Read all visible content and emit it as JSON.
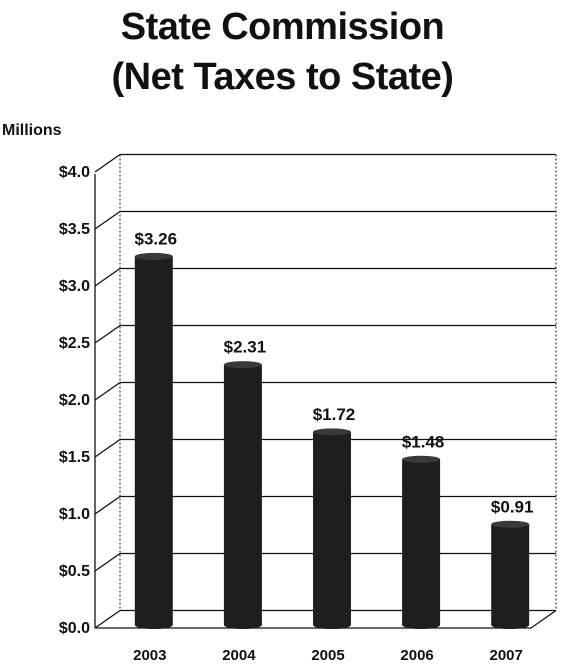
{
  "chart_data": {
    "type": "bar",
    "title_line1": "State Commission",
    "title_line2": "(Net Taxes to State)",
    "unit_label": "Millions",
    "categories": [
      "2003",
      "2004",
      "2005",
      "2006",
      "2007"
    ],
    "values": [
      3.26,
      2.31,
      1.72,
      1.48,
      0.91
    ],
    "value_labels": [
      "$3.26",
      "$2.31",
      "$1.72",
      "$1.48",
      "$0.91"
    ],
    "y_ticks": [
      0,
      0.5,
      1.0,
      1.5,
      2.0,
      2.5,
      3.0,
      3.5,
      4.0
    ],
    "y_tick_labels": [
      "$0.0",
      "$0.5",
      "$1.0",
      "$1.5",
      "$2.0",
      "$2.5",
      "$3.0",
      "$3.5",
      "$4.0"
    ],
    "ylim": [
      0,
      4.0
    ],
    "grid": true,
    "bar_color": "#1e1e1e",
    "grid_color": "#111111"
  }
}
